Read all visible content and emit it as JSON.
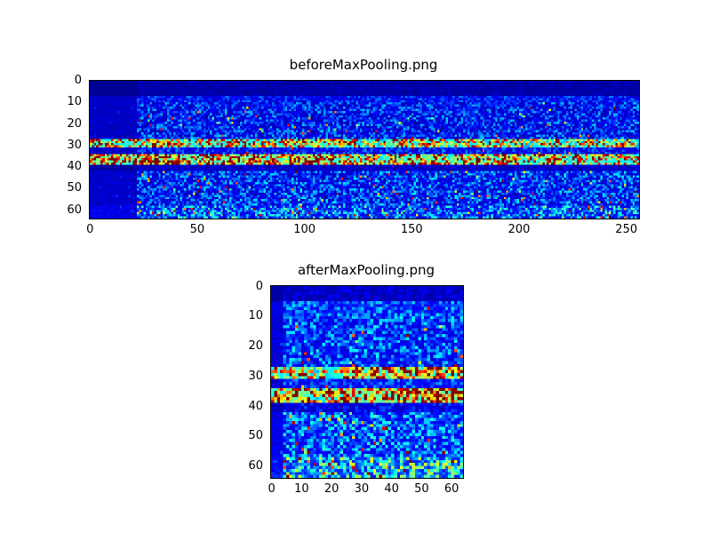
{
  "figure": {
    "background": "#ffffff",
    "text_color": "#000000"
  },
  "chart_data": [
    {
      "type": "heatmap",
      "title": "beforeMaxPooling.png",
      "colormap": "jet",
      "width_cells": 256,
      "height_cells": 64,
      "x_range": [
        0,
        255
      ],
      "y_range": [
        0,
        63
      ],
      "x_ticks": [
        0,
        50,
        100,
        150,
        200,
        250
      ],
      "y_ticks": [
        0,
        10,
        20,
        30,
        40,
        50,
        60
      ],
      "legend": "none",
      "grid": false,
      "background_value": 0.03,
      "quiet_left_cols": 22,
      "seed": 42,
      "row_bands": [
        {
          "from": 0,
          "to": 6,
          "base": 0.03,
          "noise": 0.03,
          "sparkle": 0
        },
        {
          "from": 7,
          "to": 9,
          "base": 0.1,
          "noise": 0.1,
          "sparkle": 0
        },
        {
          "from": 10,
          "to": 26,
          "base": 0.09,
          "noise": 0.15,
          "sparkle": 0.01
        },
        {
          "from": 27,
          "to": 30,
          "base": 0.42,
          "noise": 0.38,
          "sparkle": 0.1
        },
        {
          "from": 31,
          "to": 33,
          "base": 0.1,
          "noise": 0.11,
          "sparkle": 0.01
        },
        {
          "from": 34,
          "to": 38,
          "base": 0.48,
          "noise": 0.4,
          "sparkle": 0.15
        },
        {
          "from": 39,
          "to": 41,
          "base": 0.05,
          "noise": 0.05,
          "sparkle": 0
        },
        {
          "from": 42,
          "to": 57,
          "base": 0.1,
          "noise": 0.17,
          "sparkle": 0.02
        },
        {
          "from": 58,
          "to": 63,
          "base": 0.14,
          "noise": 0.21,
          "sparkle": 0.03
        }
      ]
    },
    {
      "type": "heatmap",
      "title": "afterMaxPooling.png",
      "colormap": "jet",
      "width_cells": 64,
      "height_cells": 64,
      "x_range": [
        0,
        63
      ],
      "y_range": [
        0,
        63
      ],
      "x_ticks": [
        0,
        10,
        20,
        30,
        40,
        50,
        60
      ],
      "y_ticks": [
        0,
        10,
        20,
        30,
        40,
        50,
        60
      ],
      "legend": "none",
      "grid": false,
      "background_value": 0.05,
      "quiet_left_cols": 4,
      "seed": 7,
      "row_bands": [
        {
          "from": 0,
          "to": 4,
          "base": 0.05,
          "noise": 0.05,
          "sparkle": 0
        },
        {
          "from": 5,
          "to": 9,
          "base": 0.14,
          "noise": 0.14,
          "sparkle": 0.01
        },
        {
          "from": 10,
          "to": 26,
          "base": 0.12,
          "noise": 0.16,
          "sparkle": 0.02
        },
        {
          "from": 27,
          "to": 30,
          "base": 0.45,
          "noise": 0.38,
          "sparkle": 0.12
        },
        {
          "from": 31,
          "to": 33,
          "base": 0.12,
          "noise": 0.12,
          "sparkle": 0.01
        },
        {
          "from": 34,
          "to": 38,
          "base": 0.5,
          "noise": 0.4,
          "sparkle": 0.16
        },
        {
          "from": 39,
          "to": 41,
          "base": 0.08,
          "noise": 0.08,
          "sparkle": 0
        },
        {
          "from": 42,
          "to": 56,
          "base": 0.14,
          "noise": 0.18,
          "sparkle": 0.03
        },
        {
          "from": 57,
          "to": 63,
          "base": 0.2,
          "noise": 0.26,
          "sparkle": 0.05
        }
      ]
    }
  ]
}
